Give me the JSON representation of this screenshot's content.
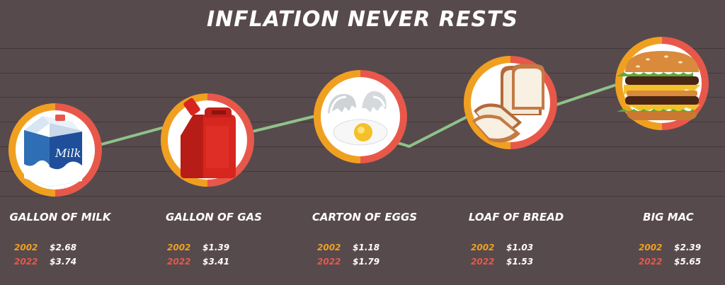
{
  "title": "INFLATION NEVER RESTS",
  "colors": {
    "background": "#574a4c",
    "ring_outer": "#e8584a",
    "ring_inner": "#f0a020",
    "connector": "#8fc38a",
    "year_2002": "#f0a020",
    "year_2022": "#e8584a"
  },
  "items": [
    {
      "id": "milk",
      "label": "GALLON OF MILK",
      "icon": "milk-carton-icon",
      "carton_text": "Milk",
      "prices": [
        {
          "year": "2002",
          "value": "$2.68"
        },
        {
          "year": "2022",
          "value": "$3.74"
        }
      ]
    },
    {
      "id": "gas",
      "label": "GALLON OF GAS",
      "icon": "gas-can-icon",
      "prices": [
        {
          "year": "2002",
          "value": "$1.39"
        },
        {
          "year": "2022",
          "value": "$3.41"
        }
      ]
    },
    {
      "id": "eggs",
      "label": "CARTON OF EGGS",
      "icon": "egg-icon",
      "prices": [
        {
          "year": "2002",
          "value": "$1.18"
        },
        {
          "year": "2022",
          "value": "$1.79"
        }
      ]
    },
    {
      "id": "bread",
      "label": "LOAF OF BREAD",
      "icon": "bread-icon",
      "prices": [
        {
          "year": "2002",
          "value": "$1.03"
        },
        {
          "year": "2022",
          "value": "$1.53"
        }
      ]
    },
    {
      "id": "bigmac",
      "label": "BIG MAC",
      "icon": "burger-icon",
      "prices": [
        {
          "year": "2002",
          "value": "$2.39"
        },
        {
          "year": "2022",
          "value": "$5.65"
        }
      ]
    }
  ]
}
